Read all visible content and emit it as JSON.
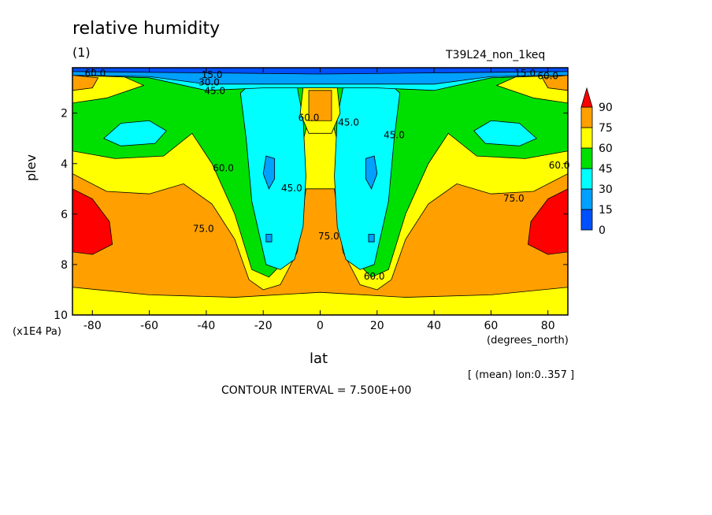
{
  "chart_data": {
    "type": "heatmap",
    "title": "relative humidity",
    "subtitle": "(1)",
    "run_label": "T39L24_non_1keq",
    "xlabel": "lat",
    "x_unit": "(degrees_north)",
    "ylabel": "plev",
    "y_unit": "(x1E4 Pa)",
    "mean_info": "[ (mean) lon:0..357 ]",
    "contour_interval_text": "CONTOUR INTERVAL = 7.500E+00",
    "xlim": [
      -87,
      87
    ],
    "ylim": [
      10,
      0.2
    ],
    "x_ticks": [
      -80,
      -60,
      -40,
      -20,
      0,
      20,
      40,
      60,
      80
    ],
    "y_ticks": [
      2,
      4,
      6,
      8,
      10
    ],
    "colorbar": {
      "levels": [
        0,
        15,
        30,
        45,
        60,
        75,
        90
      ],
      "colors": [
        "#0050ff",
        "#00a0ff",
        "#00ffff",
        "#00e000",
        "#ffff00",
        "#ffa000",
        "#ff0000"
      ]
    },
    "contour_labels": [
      {
        "text": "15.0",
        "x": -38,
        "y": 0.6
      },
      {
        "text": "30.0",
        "x": -39,
        "y": 0.9
      },
      {
        "text": "45.0",
        "x": -37,
        "y": 1.25
      },
      {
        "text": "60.0",
        "x": -79,
        "y": 0.55
      },
      {
        "text": "60.0",
        "x": -4,
        "y": 2.3
      },
      {
        "text": "45.0",
        "x": 10,
        "y": 2.5
      },
      {
        "text": "45.0",
        "x": 26,
        "y": 3.0
      },
      {
        "text": "60.0",
        "x": -34,
        "y": 4.3
      },
      {
        "text": "45.0",
        "x": -10,
        "y": 5.1
      },
      {
        "text": "75.0",
        "x": 3,
        "y": 7.0
      },
      {
        "text": "75.0",
        "x": -41,
        "y": 6.7
      },
      {
        "text": "60.0",
        "x": 19,
        "y": 8.6
      },
      {
        "text": "60.0",
        "x": 84,
        "y": 4.2
      },
      {
        "text": "75.0",
        "x": 68,
        "y": 5.5
      },
      {
        "text": "15.0",
        "x": 72,
        "y": 0.55
      },
      {
        "text": "60.0",
        "x": 80,
        "y": 0.65
      }
    ],
    "field_regions": [
      {
        "level": 60,
        "note": "band above ~9.0 at all latitudes, below top"
      },
      {
        "level": 75,
        "note": "lower troposphere 5-9 excluding tropical upper columns"
      },
      {
        "level": 90,
        "note": "maxima near +/-80 lat at 5.5-7.5"
      },
      {
        "level": 30,
        "note": "subtropical cores 1-8, mid-latitude 2-3"
      },
      {
        "level": 15,
        "note": "small cores near 4 and 7 at +/-17 lat; thin band near top"
      }
    ]
  }
}
